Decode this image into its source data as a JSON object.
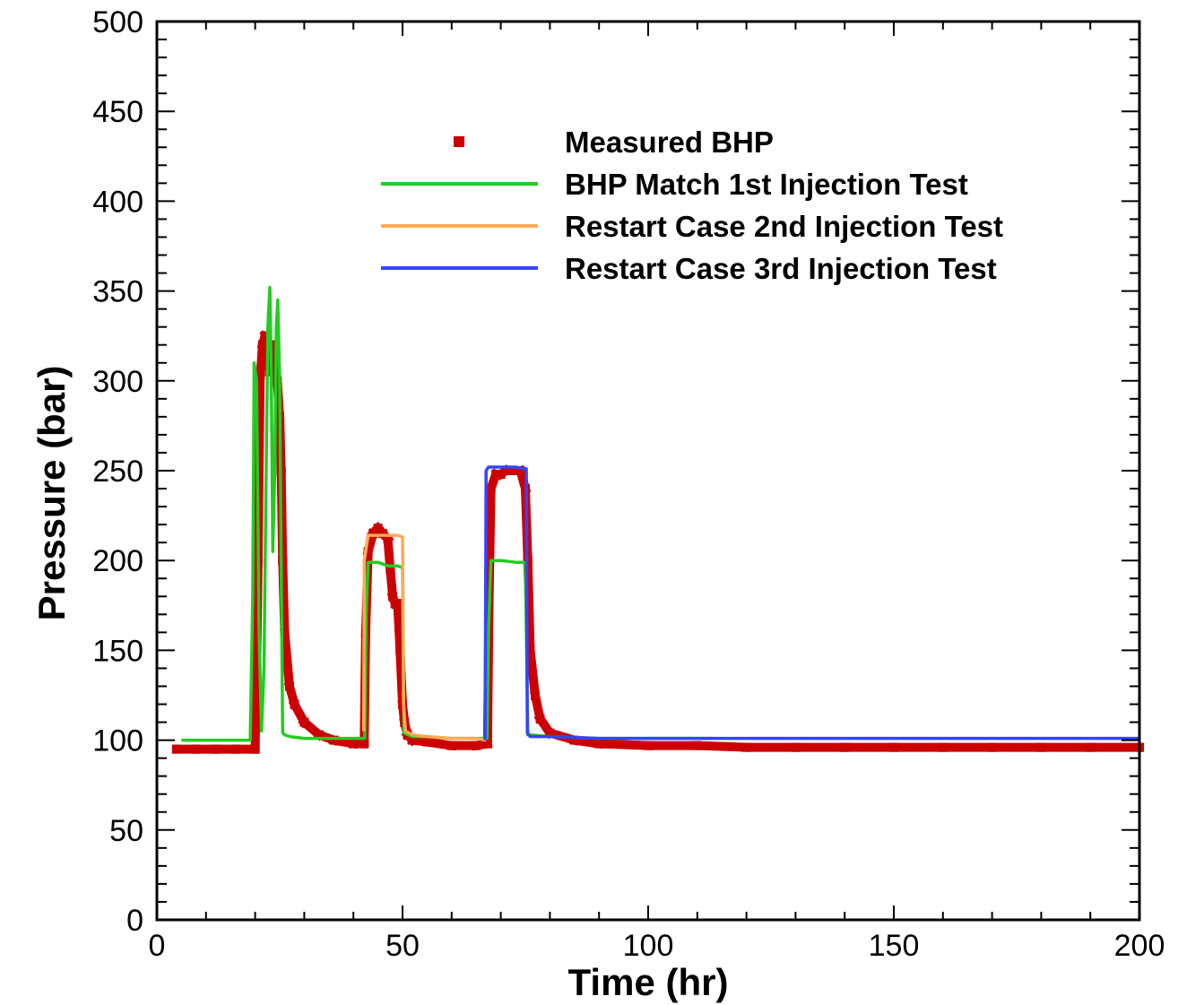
{
  "chart_data": {
    "type": "line",
    "xlabel": "Time (hr)",
    "ylabel": "Pressure (bar)",
    "xlim": [
      0,
      200
    ],
    "ylim": [
      0,
      500
    ],
    "xticks": [
      0,
      50,
      100,
      150,
      200
    ],
    "xtick_labels": [
      "0",
      "50",
      "100",
      "150",
      "200"
    ],
    "yticks": [
      0,
      50,
      100,
      150,
      200,
      250,
      300,
      350,
      400,
      450,
      500
    ],
    "ytick_labels": [
      "0",
      "50",
      "100",
      "150",
      "200",
      "250",
      "300",
      "350",
      "400",
      "450",
      "500"
    ],
    "grid": false,
    "legend_position": "top-center",
    "series": [
      {
        "name": "Measured BHP",
        "style": "markers",
        "color": "#cc0000",
        "x": [
          4,
          8,
          12,
          16,
          20,
          20.3,
          20.6,
          21,
          21.5,
          22,
          22.5,
          23,
          23.5,
          24,
          24.5,
          25,
          25.3,
          25.6,
          26,
          27,
          28,
          30,
          33,
          36,
          40,
          42.2,
          42.5,
          43,
          44,
          45,
          46,
          47,
          47.5,
          48,
          48.5,
          49,
          49.5,
          50,
          50.4,
          51,
          52,
          55,
          60,
          65,
          67.3,
          67.6,
          68,
          69,
          70,
          71,
          72,
          73,
          74,
          75,
          75.5,
          76,
          77,
          78,
          80,
          85,
          90,
          100,
          110,
          120,
          130,
          140,
          150,
          160,
          170,
          180,
          190,
          200
        ],
        "y": [
          95,
          95,
          95,
          95,
          95,
          140,
          200,
          300,
          320,
          325,
          315,
          305,
          320,
          310,
          300,
          280,
          250,
          200,
          160,
          130,
          120,
          110,
          103,
          100,
          98,
          98,
          160,
          205,
          215,
          218,
          215,
          212,
          195,
          180,
          176,
          176,
          150,
          120,
          110,
          103,
          100,
          99,
          97,
          97,
          98,
          175,
          240,
          248,
          248,
          250,
          250,
          250,
          250,
          240,
          200,
          150,
          125,
          112,
          104,
          100,
          98,
          97,
          97,
          96,
          96,
          96,
          96,
          96,
          96,
          96,
          96,
          96
        ]
      },
      {
        "name": "BHP Match 1st Injection Test",
        "style": "line",
        "color": "#22cc22",
        "x": [
          5,
          10,
          15,
          19,
          19.5,
          19.8,
          20.3,
          20.8,
          21.3,
          21.8,
          22.2,
          22.6,
          23,
          23.3,
          23.6,
          24,
          24.3,
          24.6,
          25,
          25.3,
          25.6,
          26,
          27,
          30,
          35,
          42.3,
          42.6,
          43,
          45,
          47,
          49,
          50,
          50.3,
          52,
          55,
          60,
          67.2,
          67.5,
          68,
          70,
          73,
          75,
          75.5,
          76,
          80,
          90,
          100,
          113
        ],
        "y": [
          100,
          100,
          100,
          100,
          180,
          310,
          300,
          160,
          105,
          140,
          240,
          330,
          352,
          300,
          205,
          250,
          330,
          345,
          300,
          200,
          104,
          103,
          102,
          101,
          101,
          101,
          170,
          199,
          199,
          197,
          197,
          196,
          104,
          102,
          102,
          101,
          101,
          160,
          200,
          200,
          199,
          199,
          103,
          103,
          102,
          101,
          101,
          101
        ]
      },
      {
        "name": "Restart Case 2nd Injection Test",
        "style": "line",
        "color": "#ffaa55",
        "x": [
          42.1,
          42.2,
          43,
          46,
          49,
          50,
          50.2,
          50.6,
          52,
          55,
          60,
          65,
          67
        ],
        "y": [
          105,
          200,
          214,
          214,
          214,
          213,
          120,
          105,
          103,
          102,
          101,
          101,
          100
        ]
      },
      {
        "name": "Restart Case 3rd Injection Test",
        "style": "line",
        "color": "#3344ff",
        "x": [
          66.8,
          67,
          67.5,
          70,
          73,
          75.2,
          75.4,
          76,
          80,
          90,
          100,
          120,
          150,
          175,
          200
        ],
        "y": [
          100,
          250,
          252,
          252,
          252,
          251,
          104,
          102,
          102,
          101,
          101,
          101,
          101,
          101,
          101
        ]
      }
    ]
  }
}
